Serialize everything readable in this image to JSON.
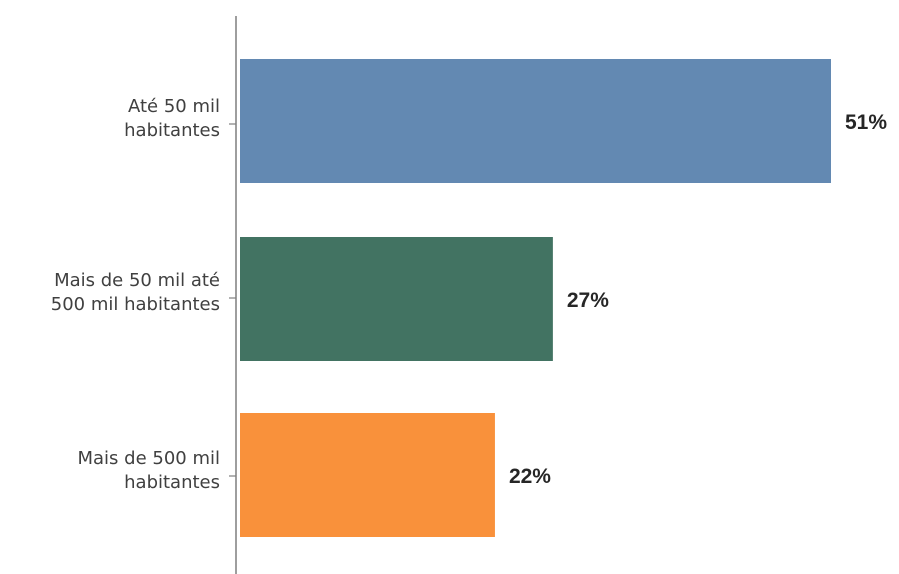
{
  "chart_data": {
    "type": "bar",
    "orientation": "horizontal",
    "categories": [
      [
        "Até 50 mil",
        "habitantes"
      ],
      [
        "Mais de 50 mil até",
        "500 mil habitantes"
      ],
      [
        "Mais de 500 mil",
        "habitantes"
      ]
    ],
    "values": [
      51,
      27,
      22
    ],
    "value_labels": [
      "51%",
      "27%",
      "22%"
    ],
    "colors": [
      "#6389b2",
      "#427362",
      "#f9913b"
    ],
    "xlim": [
      0,
      51
    ],
    "title": "",
    "xlabel": "",
    "ylabel": "",
    "grid": false,
    "legend": "none"
  }
}
